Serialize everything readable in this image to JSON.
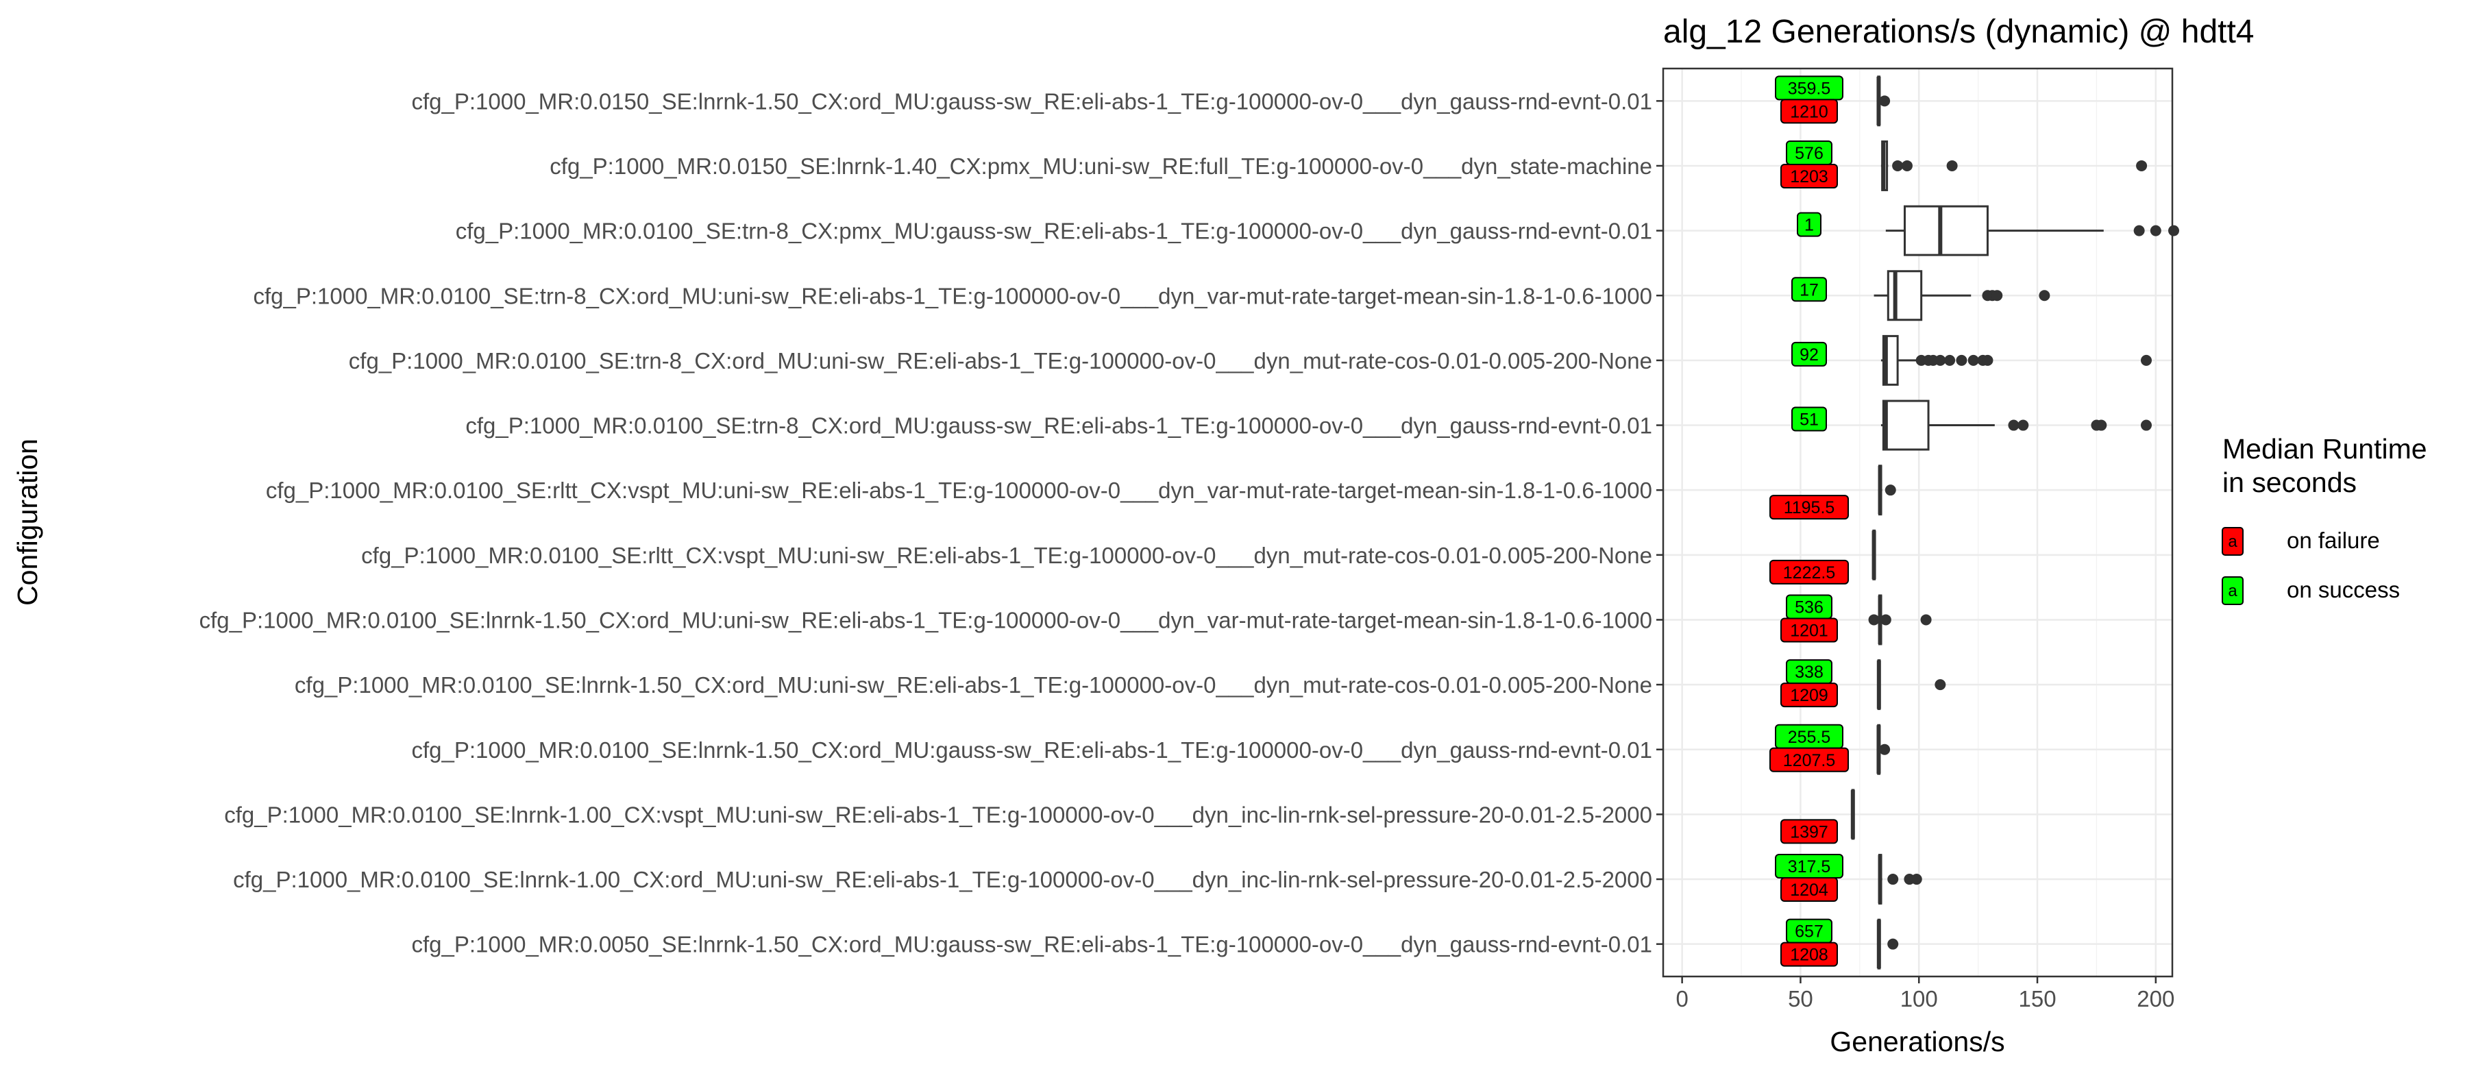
{
  "chart_data": {
    "type": "boxplot",
    "title": "alg_12 Generations/s (dynamic) @ hdtt4",
    "xlabel": "Generations/s",
    "ylabel": "Configuration",
    "xlim": [
      -8,
      207
    ],
    "xticks": [
      0,
      50,
      100,
      150,
      200
    ],
    "grid": true,
    "legend": {
      "title_lines": [
        "Median Runtime",
        "in seconds"
      ],
      "position": "right",
      "entries": [
        {
          "key": "a",
          "label": "on failure",
          "color": "#ff0000"
        },
        {
          "key": "a",
          "label": "on success",
          "color": "#00ff00"
        }
      ]
    },
    "colors": {
      "failure": "#ff0000",
      "success": "#00ff00",
      "box": "#333333",
      "grid": "#ebebeb"
    },
    "rows": [
      {
        "label": "cfg_P:1000_MR:0.0150_SE:lnrnk-1.50_CX:ord_MU:gauss-sw_RE:eli-abs-1_TE:g-100000-ov-0___dyn_gauss-rnd-evnt-0.01",
        "box": {
          "lower": 82.5,
          "q1": 82.8,
          "median": 83.0,
          "q3": 83.3,
          "upper": 83.6
        },
        "outliers": [
          85.5
        ],
        "success": "359.5",
        "failure": "1210"
      },
      {
        "label": "cfg_P:1000_MR:0.0150_SE:lnrnk-1.40_CX:pmx_MU:uni-sw_RE:full_TE:g-100000-ov-0___dyn_state-machine",
        "box": {
          "lower": 84.0,
          "q1": 84.5,
          "median": 85.0,
          "q3": 86.5,
          "upper": 87.0
        },
        "outliers": [
          91,
          95,
          114,
          194
        ],
        "success": "576",
        "failure": "1203"
      },
      {
        "label": "cfg_P:1000_MR:0.0100_SE:trn-8_CX:pmx_MU:gauss-sw_RE:eli-abs-1_TE:g-100000-ov-0___dyn_gauss-rnd-evnt-0.01",
        "box": {
          "lower": 86,
          "q1": 94,
          "median": 109,
          "q3": 129,
          "upper": 178
        },
        "outliers": [
          193,
          200,
          208
        ],
        "success": "1",
        "failure": ""
      },
      {
        "label": "cfg_P:1000_MR:0.0100_SE:trn-8_CX:ord_MU:uni-sw_RE:eli-abs-1_TE:g-100000-ov-0___dyn_var-mut-rate-target-mean-sin-1.8-1-0.6-1000",
        "box": {
          "lower": 81,
          "q1": 87,
          "median": 90,
          "q3": 101,
          "upper": 122
        },
        "outliers": [
          129,
          131,
          133,
          153
        ],
        "success": "17",
        "failure": ""
      },
      {
        "label": "cfg_P:1000_MR:0.0100_SE:trn-8_CX:ord_MU:uni-sw_RE:eli-abs-1_TE:g-100000-ov-0___dyn_mut-rate-cos-0.01-0.005-200-None",
        "box": {
          "lower": 84,
          "q1": 85,
          "median": 86,
          "q3": 91,
          "upper": 99
        },
        "outliers": [
          101,
          104,
          106,
          109,
          113,
          118,
          123,
          127,
          129,
          196
        ],
        "success": "92",
        "failure": ""
      },
      {
        "label": "cfg_P:1000_MR:0.0100_SE:trn-8_CX:ord_MU:gauss-sw_RE:eli-abs-1_TE:g-100000-ov-0___dyn_gauss-rnd-evnt-0.01",
        "box": {
          "lower": 84,
          "q1": 85,
          "median": 86,
          "q3": 104,
          "upper": 132
        },
        "outliers": [
          140,
          144,
          175,
          177,
          196
        ],
        "success": "51",
        "failure": ""
      },
      {
        "label": "cfg_P:1000_MR:0.0100_SE:rltt_CX:vspt_MU:uni-sw_RE:eli-abs-1_TE:g-100000-ov-0___dyn_var-mut-rate-target-mean-sin-1.8-1-0.6-1000",
        "box": {
          "lower": 83.0,
          "q1": 83.3,
          "median": 83.6,
          "q3": 84.0,
          "upper": 84.5
        },
        "outliers": [
          88
        ],
        "success": "",
        "failure": "1195.5"
      },
      {
        "label": "cfg_P:1000_MR:0.0100_SE:rltt_CX:vspt_MU:uni-sw_RE:eli-abs-1_TE:g-100000-ov-0___dyn_mut-rate-cos-0.01-0.005-200-None",
        "box": {
          "lower": 80.5,
          "q1": 80.8,
          "median": 81.0,
          "q3": 81.3,
          "upper": 81.6
        },
        "outliers": [],
        "success": "",
        "failure": "1222.5"
      },
      {
        "label": "cfg_P:1000_MR:0.0100_SE:lnrnk-1.50_CX:ord_MU:uni-sw_RE:eli-abs-1_TE:g-100000-ov-0___dyn_var-mut-rate-target-mean-sin-1.8-1-0.6-1000",
        "box": {
          "lower": 83.0,
          "q1": 83.3,
          "median": 83.6,
          "q3": 84.0,
          "upper": 84.5
        },
        "outliers": [
          81,
          86,
          103
        ],
        "success": "536",
        "failure": "1201"
      },
      {
        "label": "cfg_P:1000_MR:0.0100_SE:lnrnk-1.50_CX:ord_MU:uni-sw_RE:eli-abs-1_TE:g-100000-ov-0___dyn_mut-rate-cos-0.01-0.005-200-None",
        "box": {
          "lower": 82.6,
          "q1": 82.9,
          "median": 83.1,
          "q3": 83.4,
          "upper": 83.7
        },
        "outliers": [
          109
        ],
        "success": "338",
        "failure": "1209"
      },
      {
        "label": "cfg_P:1000_MR:0.0100_SE:lnrnk-1.50_CX:ord_MU:gauss-sw_RE:eli-abs-1_TE:g-100000-ov-0___dyn_gauss-rnd-evnt-0.01",
        "box": {
          "lower": 82.5,
          "q1": 82.8,
          "median": 83.0,
          "q3": 83.3,
          "upper": 83.6
        },
        "outliers": [
          85.5
        ],
        "success": "255.5",
        "failure": "1207.5"
      },
      {
        "label": "cfg_P:1000_MR:0.0100_SE:lnrnk-1.00_CX:vspt_MU:uni-sw_RE:eli-abs-1_TE:g-100000-ov-0___dyn_inc-lin-rnk-sel-pressure-20-0.01-2.5-2000",
        "box": {
          "lower": 71.6,
          "q1": 71.9,
          "median": 72.1,
          "q3": 72.4,
          "upper": 72.7
        },
        "outliers": [],
        "success": "",
        "failure": "1397"
      },
      {
        "label": "cfg_P:1000_MR:0.0100_SE:lnrnk-1.00_CX:ord_MU:uni-sw_RE:eli-abs-1_TE:g-100000-ov-0___dyn_inc-lin-rnk-sel-pressure-20-0.01-2.5-2000",
        "box": {
          "lower": 83.0,
          "q1": 83.3,
          "median": 83.6,
          "q3": 84.0,
          "upper": 84.5
        },
        "outliers": [
          89,
          96,
          99
        ],
        "success": "317.5",
        "failure": "1204"
      },
      {
        "label": "cfg_P:1000_MR:0.0050_SE:lnrnk-1.50_CX:ord_MU:gauss-sw_RE:eli-abs-1_TE:g-100000-ov-0___dyn_gauss-rnd-evnt-0.01",
        "box": {
          "lower": 82.6,
          "q1": 82.9,
          "median": 83.1,
          "q3": 83.4,
          "upper": 83.7
        },
        "outliers": [
          89
        ],
        "success": "657",
        "failure": "1208"
      }
    ]
  }
}
